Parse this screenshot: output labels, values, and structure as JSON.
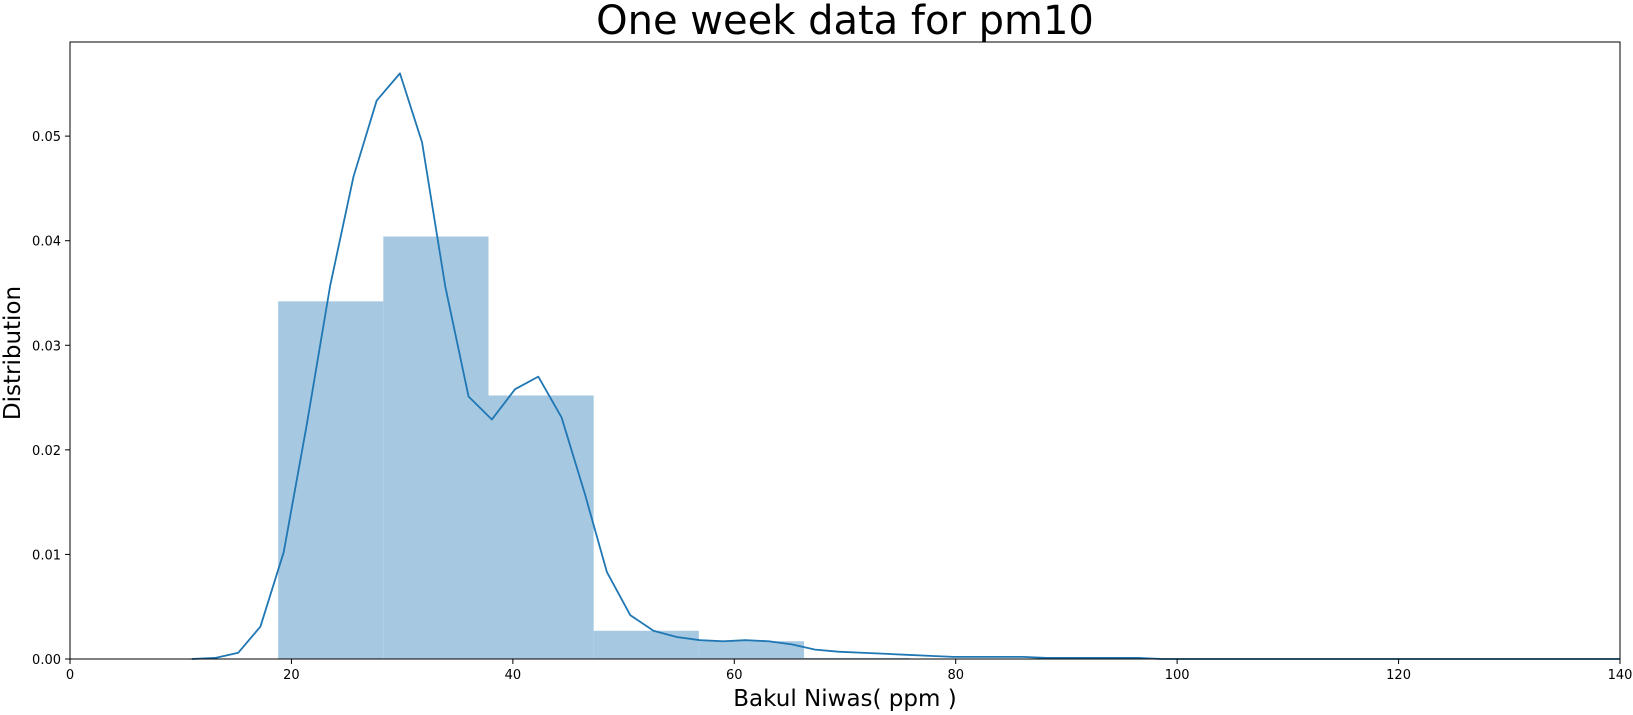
{
  "chart_data": {
    "type": "bar",
    "title": "One week data for pm10",
    "xlabel": "Bakul Niwas( ppm )",
    "ylabel": "Distribution",
    "xlim": [
      0,
      140
    ],
    "ylim": [
      0,
      0.059
    ],
    "xticks": [
      0,
      20,
      40,
      60,
      80,
      100,
      120,
      140
    ],
    "xtick_labels": [
      "0",
      "20",
      "40",
      "60",
      "80",
      "100",
      "120",
      "140"
    ],
    "yticks": [
      0.0,
      0.01,
      0.02,
      0.03,
      0.04,
      0.05
    ],
    "ytick_labels": [
      "0.00",
      "0.01",
      "0.02",
      "0.03",
      "0.04",
      "0.05"
    ],
    "grid": false,
    "histogram": {
      "bin_edges": [
        18.8,
        28.3,
        37.8,
        47.3,
        56.8,
        66.3,
        75.8,
        85.3,
        94.8,
        104.3,
        113.8,
        123.3,
        132.8
      ],
      "densities": [
        0.0342,
        0.0404,
        0.0252,
        0.0027,
        0.0017,
        0.0001,
        0.0,
        0.0,
        0.0,
        0.0,
        0.0,
        0.0
      ],
      "color": "#a6c8e0"
    },
    "kde": {
      "color": "#1f77b4",
      "x": [
        11.0,
        13.1,
        15.2,
        17.2,
        19.3,
        21.4,
        23.5,
        25.6,
        27.7,
        29.8,
        31.8,
        33.9,
        36.0,
        38.1,
        40.2,
        42.3,
        44.4,
        46.5,
        48.5,
        50.6,
        52.7,
        54.8,
        56.9,
        59.0,
        61.0,
        63.1,
        65.2,
        67.3,
        69.4,
        71.5,
        73.6,
        75.6,
        77.7,
        79.8,
        81.9,
        84.0,
        86.1,
        88.2,
        90.2,
        92.3,
        94.4,
        96.5,
        98.6,
        100.7,
        102.8,
        104.8,
        106.9,
        109.0,
        111.1,
        113.2,
        115.3,
        117.4,
        119.4,
        121.5,
        123.6,
        125.7,
        127.8,
        129.9,
        131.9,
        134.0,
        136.1,
        138.2,
        140.0
      ],
      "y": [
        0.0,
        0.0001,
        0.0006,
        0.0031,
        0.0102,
        0.0225,
        0.0357,
        0.0461,
        0.0534,
        0.056,
        0.0494,
        0.0356,
        0.0251,
        0.0229,
        0.0258,
        0.027,
        0.0231,
        0.0158,
        0.0083,
        0.0042,
        0.0027,
        0.0021,
        0.0018,
        0.0017,
        0.0018,
        0.0017,
        0.0014,
        0.0009,
        0.0007,
        0.0006,
        0.0005,
        0.0004,
        0.0003,
        0.0002,
        0.0002,
        0.0002,
        0.0002,
        0.0001,
        0.0001,
        0.0001,
        0.0001,
        0.0001,
        0.0,
        0.0,
        0.0,
        0.0,
        0.0,
        0.0,
        0.0,
        0.0,
        0.0,
        0.0,
        0.0,
        0.0,
        0.0,
        0.0,
        0.0,
        0.0,
        0.0,
        0.0,
        0.0,
        0.0,
        0.0
      ]
    }
  }
}
